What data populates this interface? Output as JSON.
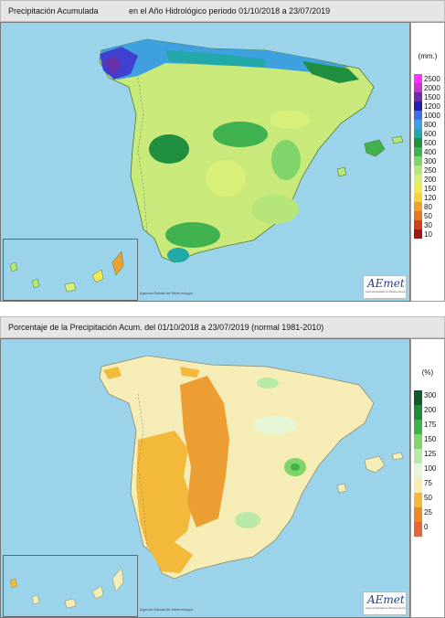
{
  "top_panel": {
    "title_left": "Precipitación Acumulada",
    "title_right": "en el Año Hidrológico  periodo 01/10/2018 a 23/07/2019",
    "unit": "(mm.)",
    "legend": [
      {
        "label": "2500",
        "color": "#ff33ff"
      },
      {
        "label": "2000",
        "color": "#cc33cc"
      },
      {
        "label": "1500",
        "color": "#6a2fa8"
      },
      {
        "label": "1200",
        "color": "#1f1fb0"
      },
      {
        "label": "1000",
        "color": "#3f6fe6"
      },
      {
        "label": "800",
        "color": "#3fa0e0"
      },
      {
        "label": "600",
        "color": "#22a8a8"
      },
      {
        "label": "500",
        "color": "#1f8f3f"
      },
      {
        "label": "400",
        "color": "#3fb24f"
      },
      {
        "label": "300",
        "color": "#7fd46a"
      },
      {
        "label": "250",
        "color": "#b6e57a"
      },
      {
        "label": "200",
        "color": "#d8f07a"
      },
      {
        "label": "150",
        "color": "#f2ea55"
      },
      {
        "label": "120",
        "color": "#f7d23f"
      },
      {
        "label": "80",
        "color": "#f0a030"
      },
      {
        "label": "50",
        "color": "#e8732a"
      },
      {
        "label": "30",
        "color": "#d0401f"
      },
      {
        "label": "10",
        "color": "#a0141a"
      }
    ],
    "logo": "AEmet",
    "logo_sub": "Agencia Estatal de Meteorología",
    "credit": "Agencia Estatal de Meteorología"
  },
  "bottom_panel": {
    "title": "Porcentaje de la Precipitación Acum. del 01/10/2018 a  23/07/2019  (normal 1981-2010)",
    "unit": "(%)",
    "legend": [
      {
        "label": "300",
        "color": "#0f5a2a"
      },
      {
        "label": "200",
        "color": "#1f8a3a"
      },
      {
        "label": "175",
        "color": "#3fb24a"
      },
      {
        "label": "150",
        "color": "#7fd46a"
      },
      {
        "label": "125",
        "color": "#b9e9a6"
      },
      {
        "label": "100",
        "color": "#e6f6d6"
      },
      {
        "label": "75",
        "color": "#f8ecb0"
      },
      {
        "label": "50",
        "color": "#f2b93a"
      },
      {
        "label": "25",
        "color": "#ec8a2a"
      },
      {
        "label": "0",
        "color": "#e8643a"
      }
    ],
    "logo": "AEmet",
    "logo_sub": "Agencia Estatal de Meteorología",
    "credit": "Agencia Estatal de Meteorología"
  },
  "colors": {
    "sea": "#9bd4ea",
    "land_top": "#c9ea7a",
    "land_bottom": "#f6ecb6"
  }
}
